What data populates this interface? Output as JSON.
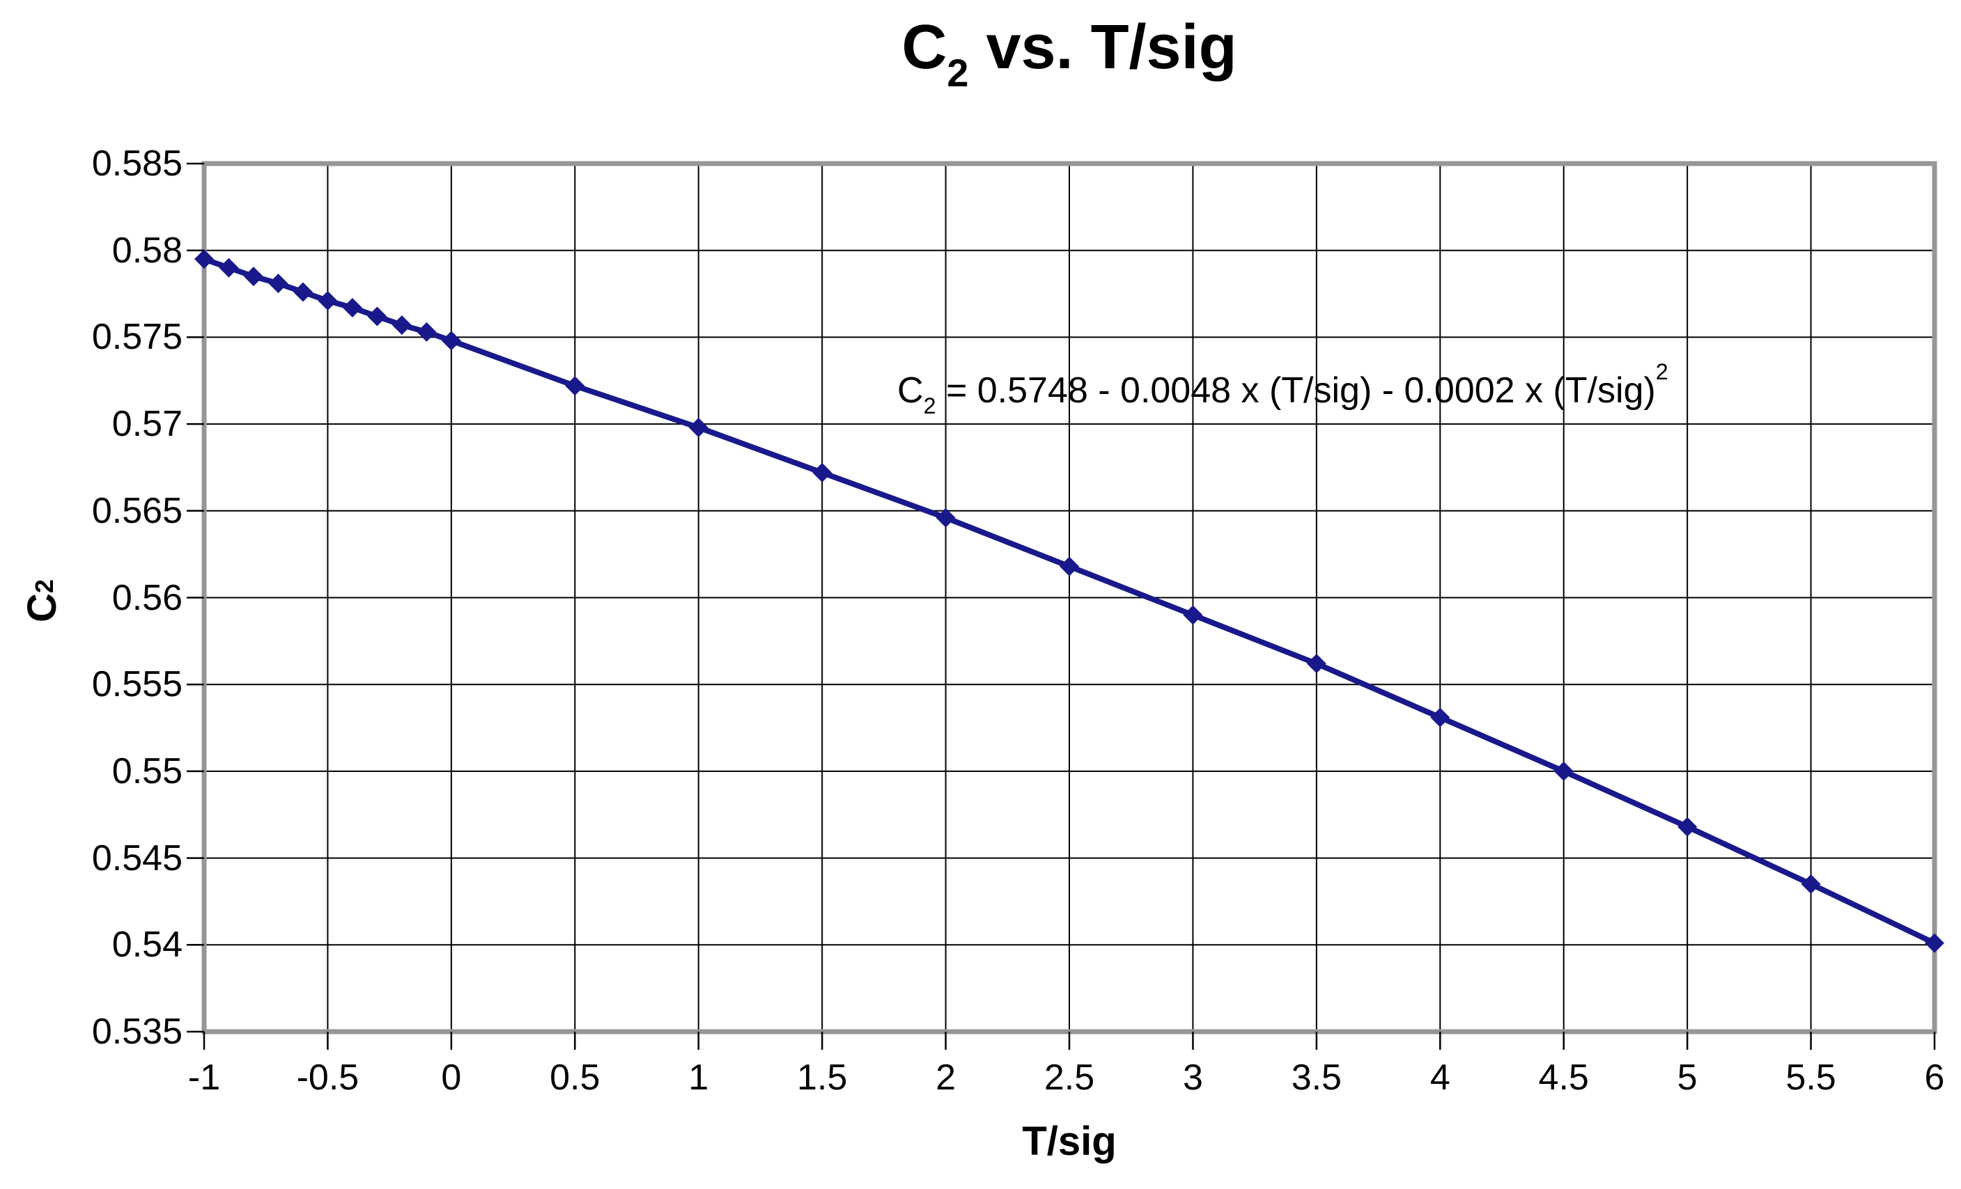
{
  "chart_data": {
    "type": "line",
    "title": {
      "prefix": "C",
      "subscript": "2",
      "suffix": " vs. T/sig"
    },
    "x_axis": {
      "title": "T/sig",
      "min": -1,
      "max": 6,
      "tick_step": 0.5,
      "tick_labels": [
        "-1",
        "-0.5",
        "0",
        "0.5",
        "1",
        "1.5",
        "2",
        "2.5",
        "3",
        "3.5",
        "4",
        "4.5",
        "5",
        "5.5",
        "6"
      ]
    },
    "y_axis": {
      "title_prefix": "C",
      "title_subscript": "2",
      "min": 0.535,
      "max": 0.585,
      "tick_step": 0.005,
      "tick_labels": [
        "0.535",
        "0.54",
        "0.545",
        "0.55",
        "0.555",
        "0.56",
        "0.565",
        "0.57",
        "0.575",
        "0.58",
        "0.585"
      ]
    },
    "grid": "both",
    "legend": "none",
    "annotation": {
      "prefix": "C",
      "subscript": "2",
      "equation": " = 0.5748 - 0.0048 x (T/sig) - 0.0002 x (T/sig)",
      "superscript": "2"
    },
    "series": [
      {
        "marker": "diamond",
        "color": "#19198C",
        "x": [
          -1,
          -0.9,
          -0.8,
          -0.7,
          -0.6,
          -0.5,
          -0.4,
          -0.3,
          -0.2,
          -0.1,
          0,
          0.5,
          1,
          1.5,
          2,
          2.5,
          3,
          3.5,
          4,
          4.5,
          5,
          5.5,
          6
        ],
        "y": [
          0.5795,
          0.579,
          0.5785,
          0.5781,
          0.5776,
          0.5771,
          0.5767,
          0.5762,
          0.5757,
          0.5753,
          0.5748,
          0.5722,
          0.5698,
          0.5672,
          0.5646,
          0.5618,
          0.559,
          0.5562,
          0.5531,
          0.55,
          0.5468,
          0.5435,
          0.5401
        ]
      }
    ],
    "colors": {
      "series": "#19198C",
      "plot_border": "#969696",
      "gridline": "#000000",
      "background": "#FFFFFF",
      "text": "#000000"
    }
  }
}
